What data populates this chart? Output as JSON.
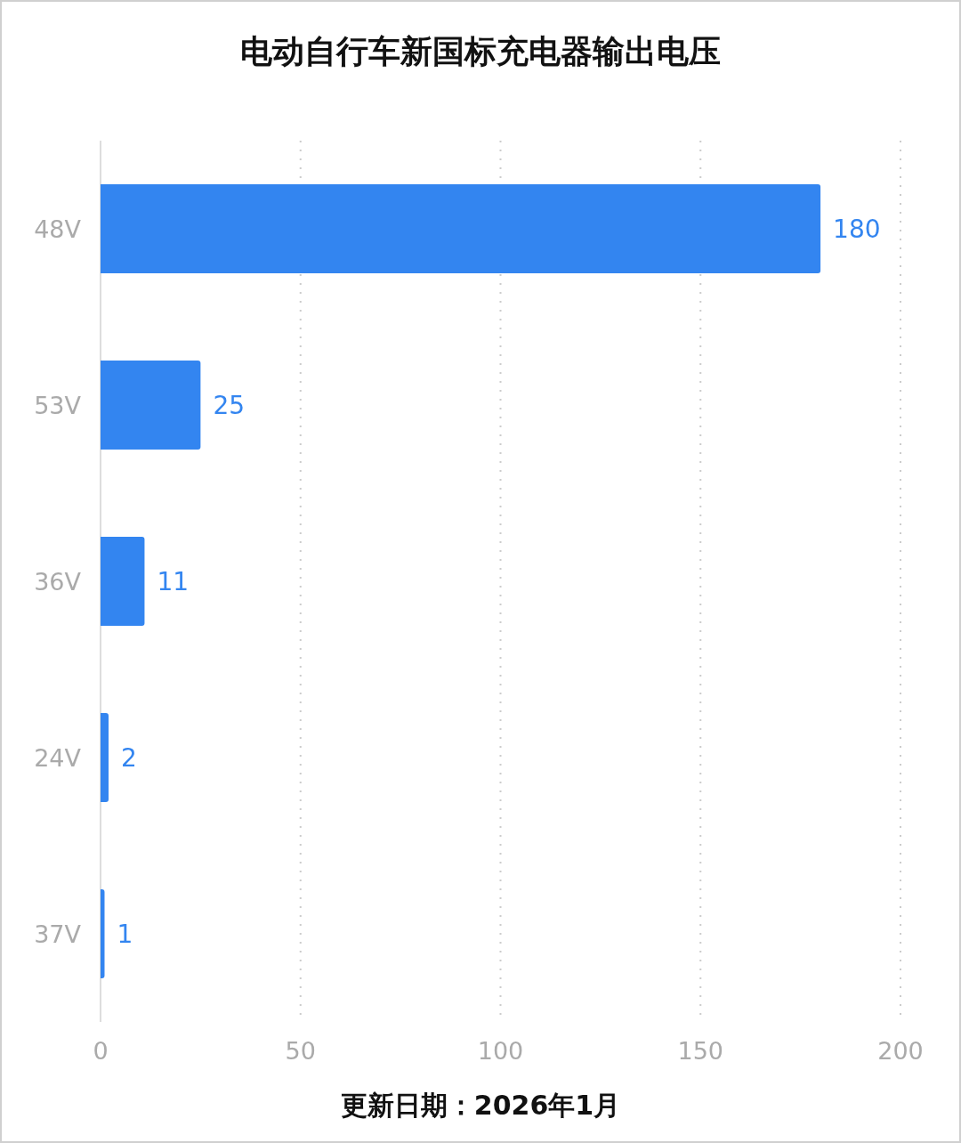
{
  "chart_data": {
    "type": "bar",
    "orientation": "horizontal",
    "title": "电动自行车新国标充电器输出电压",
    "categories": [
      "48V",
      "53V",
      "36V",
      "24V",
      "37V"
    ],
    "values": [
      180,
      25,
      11,
      2,
      1
    ],
    "color": "#3385f0",
    "xlim": [
      0,
      200
    ],
    "xticks": [
      0,
      50,
      100,
      150,
      200
    ],
    "grid": "x",
    "data_labels": true,
    "annotations": [
      "更新日期：2026年1月"
    ]
  }
}
